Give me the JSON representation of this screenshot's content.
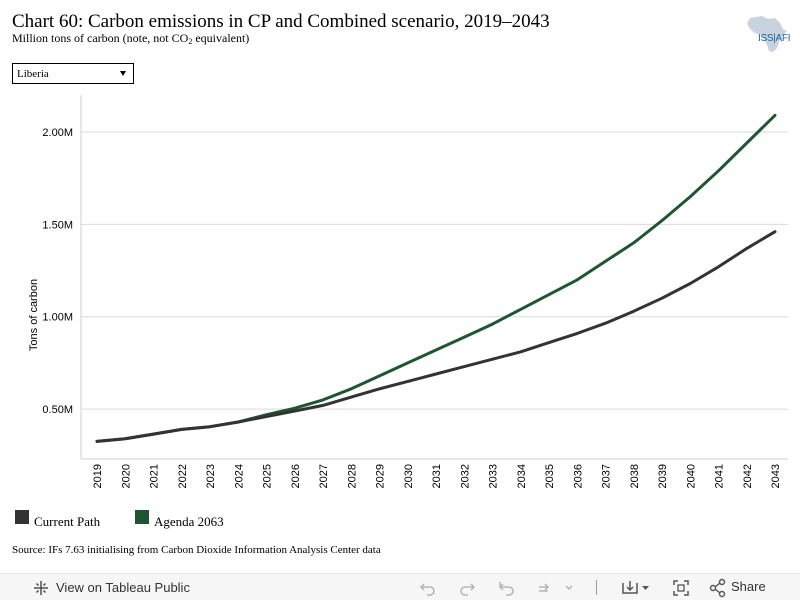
{
  "header": {
    "title": "Chart 60: Carbon emissions in CP and Combined scenario, 2019–2043",
    "subtitle_pre": "Million tons of carbon (note, not CO",
    "subtitle_sub": "2",
    "subtitle_post": " equivalent)"
  },
  "logo": {
    "text": "ISS|AFI",
    "icon": "africa-map-icon"
  },
  "country_select": {
    "value": "Liberia",
    "icon": "chevron-down-icon"
  },
  "chart_data": {
    "type": "line",
    "title": "Chart 60: Carbon emissions in CP and Combined scenario, 2019–2043",
    "ylabel": "Tons of carbon",
    "xlabel": "",
    "x": [
      "2019",
      "2020",
      "2021",
      "2022",
      "2023",
      "2024",
      "2025",
      "2026",
      "2027",
      "2028",
      "2029",
      "2030",
      "2031",
      "2032",
      "2033",
      "2034",
      "2035",
      "2036",
      "2037",
      "2038",
      "2039",
      "2040",
      "2041",
      "2042",
      "2043"
    ],
    "ylim": [
      230000,
      2200000
    ],
    "yticks": [
      500000,
      1000000,
      1500000,
      2000000
    ],
    "ytick_labels": [
      "0.50M",
      "1.00M",
      "1.50M",
      "2.00M"
    ],
    "grid": true,
    "legend_position": "bottom-left",
    "series": [
      {
        "name": "Current Path",
        "color": "#333333",
        "values": [
          325000,
          340000,
          365000,
          390000,
          405000,
          430000,
          460000,
          490000,
          520000,
          565000,
          610000,
          650000,
          690000,
          730000,
          770000,
          810000,
          860000,
          910000,
          965000,
          1030000,
          1100000,
          1180000,
          1270000,
          1370000,
          1460000
        ]
      },
      {
        "name": "Agenda 2063",
        "color": "#1e5631",
        "values": [
          325000,
          340000,
          365000,
          390000,
          405000,
          430000,
          470000,
          505000,
          550000,
          610000,
          680000,
          750000,
          820000,
          890000,
          960000,
          1040000,
          1120000,
          1200000,
          1300000,
          1400000,
          1520000,
          1650000,
          1790000,
          1940000,
          2090000
        ]
      }
    ]
  },
  "source": "Source: IFs 7.63 initialising from Carbon Dioxide Information Analysis Center data",
  "toolbar": {
    "view_label": "View on Tableau Public",
    "share_label": "Share",
    "icons": [
      "tableau-icon",
      "undo-icon",
      "redo-icon",
      "revert-icon",
      "refresh-icon",
      "download-icon",
      "fullscreen-icon",
      "share-icon"
    ]
  }
}
